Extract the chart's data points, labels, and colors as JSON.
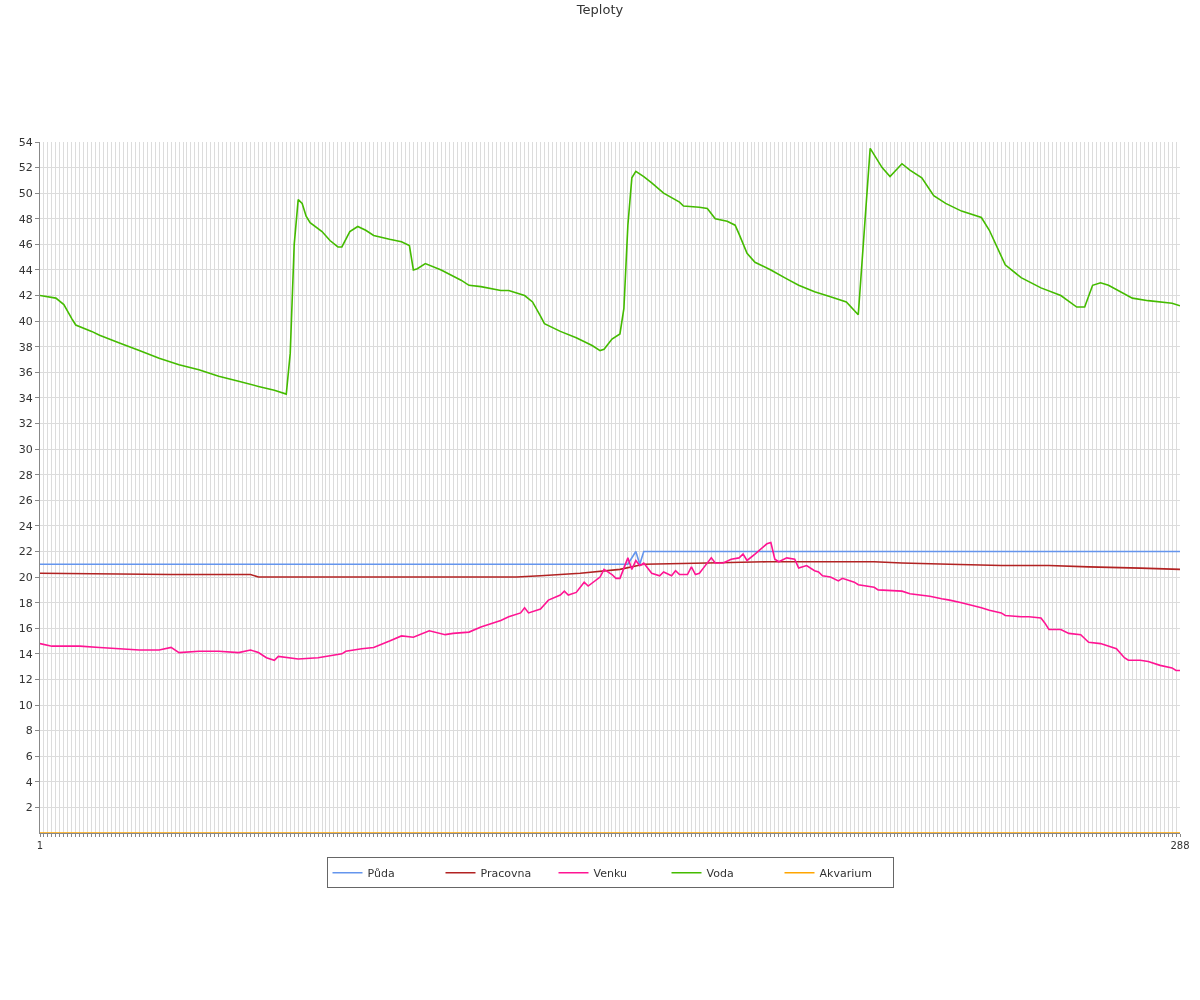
{
  "chart_data": {
    "type": "line",
    "title": "Teploty",
    "xlim": [
      1,
      288
    ],
    "ylim": [
      0,
      54
    ],
    "yticks": [
      2,
      4,
      6,
      8,
      10,
      12,
      14,
      16,
      18,
      20,
      22,
      24,
      26,
      28,
      30,
      32,
      34,
      36,
      38,
      40,
      42,
      44,
      46,
      48,
      50,
      52,
      54
    ],
    "xticks": [
      1,
      {
        "value": 2,
        "label": null
      },
      {
        "value": 3,
        "label": null
      },
      {
        "value": 4,
        "label": null
      },
      {
        "value": 5,
        "label": null
      },
      {
        "value": 6,
        "label": null
      },
      {
        "value": 7,
        "label": null
      },
      {
        "value": 8,
        "label": null
      },
      {
        "value": 9,
        "label": null
      },
      {
        "value": 10,
        "label": null
      },
      {
        "value": 11,
        "label": null
      },
      {
        "value": 12,
        "label": null
      },
      {
        "value": 13,
        "label": null
      },
      {
        "value": 14,
        "label": null
      },
      {
        "value": 15,
        "label": null
      },
      {
        "value": 16,
        "label": null
      },
      {
        "value": 17,
        "label": null
      },
      {
        "value": 18,
        "label": null
      },
      {
        "value": 19,
        "label": null
      },
      {
        "value": 20,
        "label": null
      },
      {
        "value": 21,
        "label": null
      },
      {
        "value": 22,
        "label": null
      },
      {
        "value": 23,
        "label": null
      },
      {
        "value": 24,
        "label": null
      },
      {
        "value": 25,
        "label": null
      },
      {
        "value": 26,
        "label": null
      },
      {
        "value": 27,
        "label": null
      },
      {
        "value": 28,
        "label": null
      },
      {
        "value": 29,
        "label": null
      },
      {
        "value": 30,
        "label": null
      },
      {
        "value": 31,
        "label": null
      },
      {
        "value": 32,
        "label": null
      },
      {
        "value": 33,
        "label": null
      },
      {
        "value": 34,
        "label": null
      },
      {
        "value": 35,
        "label": null
      },
      {
        "value": 36,
        "label": null
      },
      {
        "value": 37,
        "label": null
      },
      {
        "value": 38,
        "label": null
      },
      {
        "value": 39,
        "label": null
      },
      {
        "value": 40,
        "label": null
      },
      {
        "value": 41,
        "label": null
      },
      {
        "value": 42,
        "label": null
      },
      {
        "value": 43,
        "label": null
      },
      {
        "value": 44,
        "label": null
      },
      {
        "value": 45,
        "label": null
      },
      {
        "value": 46,
        "label": null
      },
      {
        "value": 47,
        "label": null
      },
      {
        "value": 48,
        "label": null
      },
      {
        "value": 49,
        "label": null
      },
      {
        "value": 50,
        "label": null
      },
      {
        "value": 51,
        "label": null
      },
      {
        "value": 52,
        "label": null
      },
      {
        "value": 53,
        "label": null
      },
      {
        "value": 54,
        "label": null
      },
      {
        "value": 55,
        "label": null
      },
      {
        "value": 56,
        "label": null
      },
      {
        "value": 57,
        "label": null
      },
      {
        "value": 58,
        "label": null
      },
      {
        "value": 59,
        "label": null
      },
      {
        "value": 60,
        "label": null
      },
      {
        "value": 61,
        "label": null
      },
      {
        "value": 62,
        "label": null
      },
      {
        "value": 63,
        "label": null
      },
      {
        "value": 64,
        "label": null
      },
      {
        "value": 65,
        "label": null
      },
      {
        "value": 66,
        "label": null
      },
      {
        "value": 67,
        "label": null
      },
      {
        "value": 68,
        "label": null
      },
      {
        "value": 69,
        "label": null
      },
      {
        "value": 70,
        "label": null
      },
      {
        "value": 71,
        "label": null
      },
      {
        "value": 72,
        "label": null
      },
      {
        "value": 73,
        "label": null
      },
      {
        "value": 74,
        "label": null
      },
      {
        "value": 75,
        "label": null
      },
      {
        "value": 76,
        "label": null
      },
      {
        "value": 77,
        "label": null
      },
      {
        "value": 78,
        "label": null
      },
      {
        "value": 79,
        "label": null
      },
      {
        "value": 80,
        "label": null
      },
      {
        "value": 81,
        "label": null
      },
      {
        "value": 82,
        "label": null
      },
      {
        "value": 83,
        "label": null
      },
      {
        "value": 84,
        "label": null
      },
      {
        "value": 85,
        "label": null
      },
      {
        "value": 86,
        "label": null
      },
      {
        "value": 87,
        "label": null
      },
      {
        "value": 88,
        "label": null
      },
      {
        "value": 89,
        "label": null
      },
      {
        "value": 90,
        "label": null
      },
      {
        "value": 91,
        "label": null
      },
      {
        "value": 92,
        "label": null
      },
      {
        "value": 93,
        "label": null
      },
      {
        "value": 94,
        "label": null
      },
      {
        "value": 95,
        "label": null
      },
      {
        "value": 96,
        "label": null
      },
      {
        "value": 97,
        "label": null
      },
      {
        "value": 98,
        "label": null
      },
      {
        "value": 99,
        "label": null
      },
      {
        "value": 100,
        "label": null
      },
      {
        "value": 101,
        "label": null
      },
      {
        "value": 102,
        "label": null
      },
      {
        "value": 103,
        "label": null
      },
      {
        "value": 104,
        "label": null
      },
      {
        "value": 105,
        "label": null
      },
      {
        "value": 106,
        "label": null
      },
      {
        "value": 107,
        "label": null
      },
      {
        "value": 108,
        "label": null
      },
      {
        "value": 109,
        "label": null
      },
      {
        "value": 110,
        "label": null
      },
      {
        "value": 111,
        "label": null
      },
      {
        "value": 112,
        "label": null
      },
      {
        "value": 113,
        "label": null
      },
      {
        "value": 114,
        "label": null
      },
      {
        "value": 115,
        "label": null
      },
      {
        "value": 116,
        "label": null
      },
      {
        "value": 117,
        "label": null
      },
      {
        "value": 118,
        "label": null
      },
      {
        "value": 119,
        "label": null
      },
      {
        "value": 120,
        "label": null
      },
      {
        "value": 121,
        "label": null
      },
      {
        "value": 122,
        "label": null
      },
      {
        "value": 123,
        "label": null
      },
      {
        "value": 124,
        "label": null
      },
      {
        "value": 125,
        "label": null
      },
      {
        "value": 126,
        "label": null
      },
      {
        "value": 127,
        "label": null
      },
      {
        "value": 128,
        "label": null
      },
      {
        "value": 129,
        "label": null
      },
      {
        "value": 130,
        "label": null
      },
      {
        "value": 131,
        "label": null
      },
      {
        "value": 132,
        "label": null
      },
      {
        "value": 133,
        "label": null
      },
      {
        "value": 134,
        "label": null
      },
      {
        "value": 135,
        "label": null
      },
      {
        "value": 136,
        "label": null
      },
      {
        "value": 137,
        "label": null
      },
      {
        "value": 138,
        "label": null
      },
      {
        "value": 139,
        "label": null
      },
      {
        "value": 140,
        "label": null
      },
      {
        "value": 141,
        "label": null
      },
      {
        "value": 142,
        "label": null
      },
      {
        "value": 143,
        "label": null
      },
      {
        "value": 144,
        "label": null
      },
      {
        "value": 145,
        "label": null
      },
      {
        "value": 146,
        "label": null
      },
      {
        "value": 147,
        "label": null
      },
      {
        "value": 148,
        "label": null
      },
      {
        "value": 149,
        "label": null
      },
      {
        "value": 150,
        "label": null
      },
      {
        "value": 151,
        "label": null
      },
      {
        "value": 152,
        "label": null
      },
      {
        "value": 153,
        "label": null
      },
      {
        "value": 154,
        "label": null
      },
      {
        "value": 155,
        "label": null
      },
      {
        "value": 156,
        "label": null
      },
      {
        "value": 157,
        "label": null
      },
      {
        "value": 158,
        "label": null
      },
      {
        "value": 159,
        "label": null
      },
      {
        "value": 160,
        "label": null
      },
      {
        "value": 161,
        "label": null
      },
      {
        "value": 162,
        "label": null
      },
      {
        "value": 163,
        "label": null
      },
      {
        "value": 164,
        "label": null
      },
      {
        "value": 165,
        "label": null
      },
      {
        "value": 166,
        "label": null
      },
      {
        "value": 167,
        "label": null
      },
      {
        "value": 168,
        "label": null
      },
      {
        "value": 169,
        "label": null
      },
      {
        "value": 170,
        "label": null
      },
      {
        "value": 171,
        "label": null
      },
      {
        "value": 172,
        "label": null
      },
      {
        "value": 173,
        "label": null
      },
      {
        "value": 174,
        "label": null
      },
      {
        "value": 175,
        "label": null
      },
      {
        "value": 176,
        "label": null
      },
      {
        "value": 177,
        "label": null
      },
      {
        "value": 178,
        "label": null
      },
      {
        "value": 179,
        "label": null
      },
      {
        "value": 180,
        "label": null
      },
      {
        "value": 181,
        "label": null
      },
      {
        "value": 182,
        "label": null
      },
      {
        "value": 183,
        "label": null
      },
      {
        "value": 184,
        "label": null
      },
      {
        "value": 185,
        "label": null
      },
      {
        "value": 186,
        "label": null
      },
      {
        "value": 187,
        "label": null
      },
      {
        "value": 188,
        "label": null
      },
      {
        "value": 189,
        "label": null
      },
      {
        "value": 190,
        "label": null
      },
      {
        "value": 191,
        "label": null
      },
      {
        "value": 192,
        "label": null
      },
      {
        "value": 193,
        "label": null
      },
      {
        "value": 194,
        "label": null
      },
      {
        "value": 195,
        "label": null
      },
      {
        "value": 196,
        "label": null
      },
      {
        "value": 197,
        "label": null
      },
      {
        "value": 198,
        "label": null
      },
      {
        "value": 199,
        "label": null
      },
      {
        "value": 200,
        "label": null
      },
      {
        "value": 201,
        "label": null
      },
      {
        "value": 202,
        "label": null
      },
      {
        "value": 203,
        "label": null
      },
      {
        "value": 204,
        "label": null
      },
      {
        "value": 205,
        "label": null
      },
      {
        "value": 206,
        "label": null
      },
      {
        "value": 207,
        "label": null
      },
      {
        "value": 208,
        "label": null
      },
      {
        "value": 209,
        "label": null
      },
      {
        "value": 210,
        "label": null
      },
      {
        "value": 211,
        "label": null
      },
      {
        "value": 212,
        "label": null
      },
      {
        "value": 213,
        "label": null
      },
      {
        "value": 214,
        "label": null
      },
      {
        "value": 215,
        "label": null
      },
      {
        "value": 216,
        "label": null
      },
      {
        "value": 217,
        "label": null
      },
      {
        "value": 218,
        "label": null
      },
      {
        "value": 219,
        "label": null
      },
      {
        "value": 220,
        "label": null
      },
      {
        "value": 221,
        "label": null
      },
      {
        "value": 222,
        "label": null
      },
      {
        "value": 223,
        "label": null
      },
      {
        "value": 224,
        "label": null
      },
      {
        "value": 225,
        "label": null
      },
      {
        "value": 226,
        "label": null
      },
      {
        "value": 227,
        "label": null
      },
      {
        "value": 228,
        "label": null
      },
      {
        "value": 229,
        "label": null
      },
      {
        "value": 230,
        "label": null
      },
      {
        "value": 231,
        "label": null
      },
      {
        "value": 232,
        "label": null
      },
      {
        "value": 233,
        "label": null
      },
      {
        "value": 234,
        "label": null
      },
      {
        "value": 235,
        "label": null
      },
      {
        "value": 236,
        "label": null
      },
      {
        "value": 237,
        "label": null
      },
      {
        "value": 238,
        "label": null
      },
      {
        "value": 239,
        "label": null
      },
      {
        "value": 240,
        "label": null
      },
      {
        "value": 241,
        "label": null
      },
      {
        "value": 242,
        "label": null
      },
      {
        "value": 243,
        "label": null
      },
      {
        "value": 244,
        "label": null
      },
      {
        "value": 245,
        "label": null
      },
      {
        "value": 246,
        "label": null
      },
      {
        "value": 247,
        "label": null
      },
      {
        "value": 248,
        "label": null
      },
      {
        "value": 249,
        "label": null
      },
      {
        "value": 250,
        "label": null
      },
      {
        "value": 251,
        "label": null
      },
      {
        "value": 252,
        "label": null
      },
      {
        "value": 253,
        "label": null
      },
      {
        "value": 254,
        "label": null
      },
      {
        "value": 255,
        "label": null
      },
      {
        "value": 256,
        "label": null
      },
      {
        "value": 257,
        "label": null
      },
      {
        "value": 258,
        "label": null
      },
      {
        "value": 259,
        "label": null
      },
      {
        "value": 260,
        "label": null
      },
      {
        "value": 261,
        "label": null
      },
      {
        "value": 262,
        "label": null
      },
      {
        "value": 263,
        "label": null
      },
      {
        "value": 264,
        "label": null
      },
      {
        "value": 265,
        "label": null
      },
      {
        "value": 266,
        "label": null
      },
      {
        "value": 267,
        "label": null
      },
      {
        "value": 268,
        "label": null
      },
      {
        "value": 269,
        "label": null
      },
      {
        "value": 270,
        "label": null
      },
      {
        "value": 271,
        "label": null
      },
      {
        "value": 272,
        "label": null
      },
      {
        "value": 273,
        "label": null
      },
      {
        "value": 274,
        "label": null
      },
      {
        "value": 275,
        "label": null
      },
      {
        "value": 276,
        "label": null
      },
      {
        "value": 277,
        "label": null
      },
      {
        "value": 278,
        "label": null
      },
      {
        "value": 279,
        "label": null
      },
      {
        "value": 280,
        "label": null
      },
      {
        "value": 281,
        "label": null
      },
      {
        "value": 282,
        "label": null
      },
      {
        "value": 283,
        "label": null
      },
      {
        "value": 284,
        "label": null
      },
      {
        "value": 285,
        "label": null
      },
      {
        "value": 286,
        "label": null
      },
      {
        "value": 287,
        "label": null
      },
      288
    ],
    "grid": true,
    "legend": "bottom",
    "marker": "none",
    "line_style": "solid",
    "series": [
      {
        "name": "Půda",
        "color": "#6495ed",
        "x": [
          1,
          149,
          151,
          152,
          153,
          288
        ],
        "values": [
          21,
          21,
          22,
          21,
          22,
          22
        ]
      },
      {
        "name": "Pracovna",
        "color": "#b22222",
        "x": [
          1,
          34,
          54,
          56,
          121,
          127,
          137,
          147,
          153,
          169,
          184,
          211,
          218,
          230,
          243,
          255,
          265,
          278,
          288
        ],
        "values": [
          20.3,
          20.2,
          20.2,
          20.0,
          20.0,
          20.1,
          20.3,
          20.6,
          21.0,
          21.1,
          21.2,
          21.2,
          21.1,
          21.0,
          20.9,
          20.9,
          20.8,
          20.7,
          20.6
        ]
      },
      {
        "name": "Venku",
        "color": "#ff1493",
        "x": [
          1,
          4,
          11,
          16,
          21,
          26,
          31,
          34,
          36,
          41,
          46,
          51,
          54,
          56,
          58,
          60,
          61,
          66,
          71,
          77,
          78,
          82,
          85,
          89,
          92,
          95,
          99,
          103,
          105,
          109,
          112,
          117,
          119,
          122,
          123,
          124,
          127,
          129,
          132,
          133,
          134,
          136,
          138,
          139,
          142,
          143,
          145,
          146,
          147,
          149,
          150,
          151,
          152,
          153,
          155,
          157,
          158,
          160,
          161,
          162,
          164,
          165,
          166,
          167,
          168,
          170,
          171,
          173,
          175,
          177,
          178,
          179,
          181,
          184,
          185,
          186,
          187,
          189,
          191,
          192,
          194,
          196,
          197,
          198,
          200,
          202,
          203,
          206,
          207,
          211,
          212,
          218,
          220,
          225,
          228,
          230,
          233,
          238,
          240,
          243,
          244,
          248,
          250,
          253,
          254,
          255,
          258,
          260,
          263,
          264,
          265,
          268,
          272,
          274,
          275,
          278,
          280,
          283,
          286,
          287,
          288
        ],
        "values": [
          14.8,
          14.6,
          14.6,
          14.5,
          14.4,
          14.3,
          14.3,
          14.5,
          14.1,
          14.2,
          14.2,
          14.1,
          14.3,
          14.1,
          13.7,
          13.5,
          13.8,
          13.6,
          13.7,
          14.0,
          14.2,
          14.4,
          14.5,
          15.0,
          15.4,
          15.3,
          15.8,
          15.5,
          15.6,
          15.7,
          16.1,
          16.6,
          16.9,
          17.2,
          17.6,
          17.2,
          17.5,
          18.2,
          18.6,
          18.9,
          18.6,
          18.8,
          19.6,
          19.3,
          20.0,
          20.6,
          20.2,
          19.9,
          19.9,
          21.5,
          20.6,
          21.3,
          20.9,
          21.1,
          20.3,
          20.1,
          20.4,
          20.1,
          20.5,
          20.2,
          20.2,
          20.8,
          20.2,
          20.3,
          20.7,
          21.5,
          21.1,
          21.1,
          21.4,
          21.5,
          21.8,
          21.3,
          21.8,
          22.6,
          22.7,
          21.4,
          21.2,
          21.5,
          21.4,
          20.7,
          20.9,
          20.5,
          20.4,
          20.1,
          20.0,
          19.7,
          19.9,
          19.6,
          19.4,
          19.2,
          19.0,
          18.9,
          18.7,
          18.5,
          18.3,
          18.2,
          18.0,
          17.6,
          17.4,
          17.2,
          17.0,
          16.9,
          16.9,
          16.8,
          16.4,
          15.9,
          15.9,
          15.6,
          15.5,
          15.2,
          14.9,
          14.8,
          14.4,
          13.7,
          13.5,
          13.5,
          13.4,
          13.1,
          12.9,
          12.7,
          12.7
        ]
      },
      {
        "name": "Voda",
        "color": "#44bb00",
        "x": [
          1,
          5,
          7,
          9,
          10,
          14,
          16,
          21,
          26,
          31,
          36,
          41,
          46,
          51,
          56,
          60,
          63,
          64,
          65,
          66,
          67,
          68,
          69,
          72,
          74,
          76,
          77,
          79,
          81,
          83,
          85,
          89,
          92,
          94,
          95,
          96,
          98,
          102,
          107,
          109,
          112,
          117,
          119,
          123,
          125,
          127,
          128,
          132,
          136,
          140,
          142,
          143,
          145,
          147,
          148,
          149,
          150,
          151,
          153,
          155,
          158,
          162,
          163,
          167,
          169,
          171,
          174,
          176,
          177,
          179,
          181,
          185,
          189,
          192,
          196,
          200,
          204,
          207,
          210,
          213,
          215,
          218,
          220,
          223,
          226,
          229,
          233,
          238,
          240,
          244,
          248,
          253,
          258,
          262,
          264,
          266,
          268,
          270,
          276,
          280,
          286,
          288
        ],
        "values": [
          42.0,
          41.8,
          41.3,
          40.2,
          39.7,
          39.2,
          38.9,
          38.3,
          37.7,
          37.1,
          36.6,
          36.2,
          35.7,
          35.3,
          34.9,
          34.6,
          34.3,
          37.5,
          46.0,
          49.5,
          49.2,
          48.2,
          47.7,
          47.0,
          46.3,
          45.8,
          45.8,
          47.0,
          47.4,
          47.1,
          46.7,
          46.4,
          46.2,
          45.9,
          44.0,
          44.1,
          44.5,
          44.0,
          43.2,
          42.8,
          42.7,
          42.4,
          42.4,
          42.0,
          41.5,
          40.4,
          39.8,
          39.2,
          38.7,
          38.1,
          37.7,
          37.8,
          38.6,
          39.0,
          41.0,
          47.5,
          51.2,
          51.7,
          51.3,
          50.8,
          50.0,
          49.3,
          49.0,
          48.9,
          48.8,
          48.0,
          47.8,
          47.5,
          46.8,
          45.3,
          44.6,
          44.0,
          43.3,
          42.8,
          42.3,
          41.9,
          41.5,
          40.5,
          53.5,
          52.0,
          51.3,
          52.3,
          51.8,
          51.2,
          49.8,
          49.2,
          48.6,
          48.1,
          47.1,
          44.4,
          43.4,
          42.6,
          42.0,
          41.1,
          41.1,
          42.8,
          43.0,
          42.8,
          41.8,
          41.6,
          41.4,
          41.2
        ]
      },
      {
        "name": "Akvarium",
        "color": "#ffa500",
        "x": [
          1,
          288
        ],
        "values": [
          0,
          0
        ]
      }
    ]
  }
}
